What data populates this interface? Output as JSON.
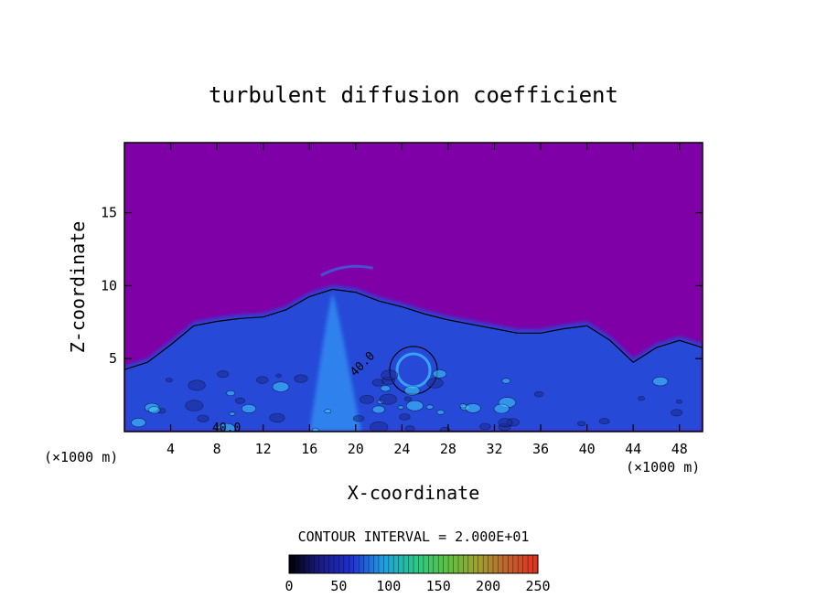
{
  "chart_data": {
    "type": "heatmap",
    "title": "turbulent diffusion coefficient",
    "xlabel": "X-coordinate",
    "ylabel": "Z-coordinate",
    "x_unit": "(×1000 m)",
    "z_unit": "(×1000 m)",
    "xlim": [
      0,
      50
    ],
    "ylim": [
      0,
      19.8
    ],
    "x_ticks": [
      4,
      8,
      12,
      16,
      20,
      24,
      28,
      32,
      36,
      40,
      44,
      48
    ],
    "y_ticks": [
      5,
      10,
      15
    ],
    "contour_interval_text": "CONTOUR INTERVAL = 2.000E+01",
    "contour_labels": [
      "40.0",
      "40.0"
    ],
    "colorbar": {
      "min": 0,
      "max": 250,
      "ticks": [
        0,
        50,
        100,
        150,
        200,
        250
      ]
    },
    "background_value": 0,
    "turbulent_layer_top_profile": [
      {
        "x": 0,
        "z": 4.5
      },
      {
        "x": 2,
        "z": 5.0
      },
      {
        "x": 4,
        "z": 6.2
      },
      {
        "x": 6,
        "z": 7.5
      },
      {
        "x": 8,
        "z": 7.8
      },
      {
        "x": 10,
        "z": 8.0
      },
      {
        "x": 12,
        "z": 8.1
      },
      {
        "x": 14,
        "z": 8.6
      },
      {
        "x": 16,
        "z": 9.5
      },
      {
        "x": 18,
        "z": 10.0
      },
      {
        "x": 20,
        "z": 9.8
      },
      {
        "x": 22,
        "z": 9.2
      },
      {
        "x": 24,
        "z": 8.8
      },
      {
        "x": 26,
        "z": 8.3
      },
      {
        "x": 28,
        "z": 7.9
      },
      {
        "x": 30,
        "z": 7.6
      },
      {
        "x": 32,
        "z": 7.3
      },
      {
        "x": 34,
        "z": 7.0
      },
      {
        "x": 36,
        "z": 7.0
      },
      {
        "x": 38,
        "z": 7.3
      },
      {
        "x": 40,
        "z": 7.5
      },
      {
        "x": 42,
        "z": 6.5
      },
      {
        "x": 44,
        "z": 5.0
      },
      {
        "x": 46,
        "z": 6.0
      },
      {
        "x": 48,
        "z": 6.5
      },
      {
        "x": 50,
        "z": 6.0
      }
    ],
    "grid": false
  },
  "colors": {
    "background": "#8000a8",
    "layer": "#2848d8",
    "core": "#40c8ff",
    "contour": "#000000"
  }
}
